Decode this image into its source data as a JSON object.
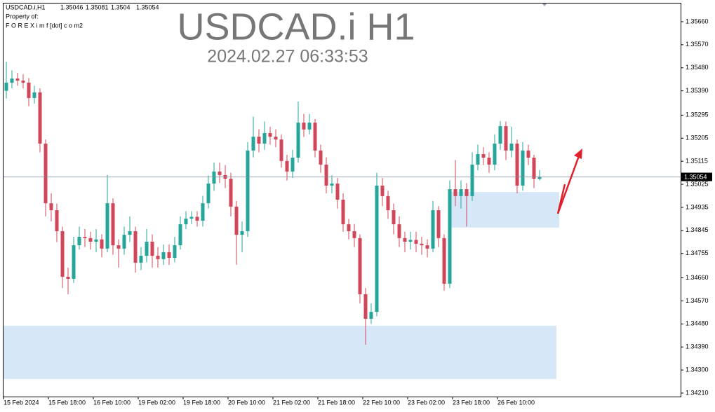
{
  "chart_data": {
    "type": "candlestick",
    "symbol_info": "USDCAD.i,H1",
    "owner_label": "Property of:",
    "owner": "F O R E X i m f [dot] c o m2",
    "title": "USDCAD.i H1",
    "subtitle": "2024.02.27 06:33:53",
    "up_color": "#26a69a",
    "down_color": "#d0475a",
    "categories": [
      "15 Feb 2024",
      null,
      null,
      null,
      null,
      null,
      null,
      null,
      "15 Feb 18:00",
      null,
      null,
      null,
      null,
      null,
      null,
      null,
      "16 Feb 10:00",
      null,
      null,
      null,
      null,
      null,
      null,
      null,
      "19 Feb 02:00",
      null,
      null,
      null,
      null,
      null,
      null,
      null,
      "19 Feb 18:00",
      null,
      null,
      null,
      null,
      null,
      null,
      null,
      "20 Feb 10:00",
      null,
      null,
      null,
      null,
      null,
      null,
      null,
      "21 Feb 02:00",
      null,
      null,
      null,
      null,
      null,
      null,
      null,
      "21 Feb 18:00",
      null,
      null,
      null,
      null,
      null,
      null,
      null,
      "22 Feb 10:00",
      null,
      null,
      null,
      null,
      null,
      null,
      null,
      "23 Feb 02:00",
      null,
      null,
      null,
      null,
      null,
      null,
      null,
      "23 Feb 18:00",
      null,
      null,
      null,
      null,
      null,
      null,
      null,
      "26 Feb 10:00",
      null,
      null,
      null,
      null,
      null,
      null,
      null
    ],
    "open": [
      1.3539,
      1.35422,
      1.35438,
      1.3543,
      1.35422,
      1.35362,
      1.35384,
      1.35184,
      1.34951,
      1.34924,
      1.34842,
      1.34664,
      1.34656,
      1.34787,
      1.3482,
      1.34815,
      1.34801,
      1.3481,
      1.34774,
      1.34951,
      1.34787,
      1.34774,
      1.34828,
      1.34842,
      1.34719,
      1.34746,
      1.34801,
      1.34746,
      1.34733,
      1.3476,
      1.34738,
      1.34787,
      1.34869,
      1.34891,
      1.34898,
      1.34883,
      1.34951,
      1.35028,
      1.35075,
      1.35061,
      1.35047,
      1.34938,
      1.34828,
      1.34842,
      1.35157,
      1.35211,
      1.35184,
      1.35225,
      1.35211,
      1.352,
      1.35116,
      1.35075,
      1.35129,
      1.35266,
      1.35239,
      1.35266,
      1.35157,
      1.35102,
      1.3502,
      1.35028,
      1.34965,
      1.34869,
      1.34842,
      1.34815,
      1.34596,
      1.345,
      1.34527,
      1.3502,
      1.34979,
      1.34924,
      1.34869,
      1.34815,
      1.34801,
      1.34808,
      1.34793,
      1.34787,
      1.34774,
      1.34924,
      1.34815,
      1.34637,
      1.35006,
      1.34979,
      1.35006,
      1.34979,
      1.35102,
      1.35143,
      1.35129,
      1.35102,
      1.35184,
      1.35252,
      1.35157,
      1.35184,
      1.3502,
      1.35157,
      1.35129,
      1.35046
    ],
    "high": [
      1.35504,
      1.3547,
      1.3546,
      1.35455,
      1.3544,
      1.3541,
      1.354,
      1.352,
      1.3499,
      1.3495,
      1.3486,
      1.347,
      1.3482,
      1.3486,
      1.3485,
      1.3484,
      1.3485,
      1.3483,
      1.35061,
      1.3497,
      1.3481,
      1.3486,
      1.349,
      1.3486,
      1.3478,
      1.3485,
      1.3483,
      1.3478,
      1.3479,
      1.3479,
      1.3482,
      1.349,
      1.3492,
      1.3492,
      1.3492,
      1.3498,
      1.3506,
      1.3511,
      1.3511,
      1.351,
      1.3507,
      1.3496,
      1.3488,
      1.3519,
      1.3529,
      1.3524,
      1.3527,
      1.3525,
      1.3524,
      1.3522,
      1.3514,
      1.3516,
      1.35348,
      1.353,
      1.353,
      1.3528,
      1.3518,
      1.3513,
      1.3506,
      1.3505,
      1.3499,
      1.3489,
      1.3487,
      1.3483,
      1.3462,
      1.3456,
      1.3507,
      1.3505,
      1.35,
      1.3495,
      1.349,
      1.3484,
      1.3484,
      1.3484,
      1.3482,
      1.3481,
      1.3496,
      1.3494,
      1.3483,
      1.3504,
      1.3512,
      1.3504,
      1.3503,
      1.3515,
      1.3518,
      1.3517,
      1.3515,
      1.3522,
      1.35272,
      1.3527,
      1.3525,
      1.352,
      1.3519,
      1.3518,
      1.3514,
      1.35081
    ],
    "low": [
      1.3536,
      1.354,
      1.3541,
      1.354,
      1.3533,
      1.3534,
      1.3515,
      1.349,
      1.3488,
      1.348,
      1.3462,
      1.34596,
      1.3464,
      1.3477,
      1.3478,
      1.3477,
      1.3476,
      1.3474,
      1.3476,
      1.3475,
      1.347,
      1.3475,
      1.348,
      1.3468,
      1.3469,
      1.3472,
      1.347,
      1.347,
      1.3471,
      1.3471,
      1.3472,
      1.3477,
      1.3485,
      1.3487,
      1.3486,
      1.3486,
      1.3493,
      1.35,
      1.3503,
      1.3501,
      1.349,
      1.34711,
      1.3476,
      1.3482,
      1.3513,
      1.3515,
      1.3516,
      1.3518,
      1.3517,
      1.3509,
      1.3504,
      1.3505,
      1.3511,
      1.3521,
      1.3522,
      1.3513,
      1.3507,
      1.3499,
      1.3499,
      1.3493,
      1.3484,
      1.3481,
      1.3478,
      1.3456,
      1.34399,
      1.3448,
      1.3451,
      1.3494,
      1.3489,
      1.3483,
      1.3478,
      1.3476,
      1.3477,
      1.3476,
      1.3475,
      1.3474,
      1.3476,
      1.3478,
      1.3461,
      1.3462,
      1.3494,
      1.3493,
      1.3486,
      1.3496,
      1.3508,
      1.351,
      1.3507,
      1.3508,
      1.3516,
      1.3512,
      1.3513,
      1.3499,
      1.35,
      1.351,
      1.3501,
      1.3504
    ],
    "close": [
      1.35422,
      1.35438,
      1.3543,
      1.35422,
      1.35362,
      1.35384,
      1.35184,
      1.34951,
      1.34924,
      1.34842,
      1.34664,
      1.34656,
      1.34787,
      1.3482,
      1.34815,
      1.34801,
      1.3481,
      1.34774,
      1.34951,
      1.34787,
      1.34774,
      1.34828,
      1.34842,
      1.34719,
      1.34746,
      1.34801,
      1.34746,
      1.34733,
      1.3476,
      1.34738,
      1.34787,
      1.34869,
      1.34891,
      1.34898,
      1.34883,
      1.34951,
      1.35028,
      1.35075,
      1.35061,
      1.35047,
      1.34938,
      1.34828,
      1.34842,
      1.35157,
      1.35211,
      1.35184,
      1.35225,
      1.35211,
      1.352,
      1.35116,
      1.35075,
      1.35129,
      1.35266,
      1.35239,
      1.35266,
      1.35157,
      1.35102,
      1.3502,
      1.35028,
      1.34965,
      1.34869,
      1.34842,
      1.34815,
      1.34596,
      1.345,
      1.34527,
      1.3502,
      1.34979,
      1.34924,
      1.34869,
      1.34815,
      1.34801,
      1.34808,
      1.34793,
      1.34787,
      1.34774,
      1.34924,
      1.34815,
      1.34637,
      1.35006,
      1.34979,
      1.35006,
      1.34979,
      1.35102,
      1.35143,
      1.35129,
      1.35102,
      1.35184,
      1.35252,
      1.35157,
      1.35184,
      1.3502,
      1.35157,
      1.35129,
      1.35047,
      1.35054
    ],
    "ylim": [
      1.34199,
      1.35731
    ],
    "yticks": [
      {
        "value": 1.3566,
        "label": "1.35660"
      },
      {
        "value": 1.3557,
        "label": "1.35570"
      },
      {
        "value": 1.3548,
        "label": "1.35480"
      },
      {
        "value": 1.3539,
        "label": "1.35390"
      },
      1.35295,
      1.35205,
      1.35115,
      1.35025,
      1.34935,
      1.34845,
      1.34755,
      {
        "value": 1.3466,
        "label": "1.34660"
      },
      {
        "value": 1.3457,
        "label": "1.34570"
      },
      {
        "value": 1.3448,
        "label": "1.34480"
      },
      {
        "value": 1.3439,
        "label": "1.34390"
      },
      {
        "value": 1.343,
        "label": "1.34300"
      },
      {
        "value": 1.3421,
        "label": "1.34210"
      }
    ],
    "zones": [
      {
        "low": 1.34856,
        "high": 1.34995,
        "color": "#d6e8f8"
      },
      {
        "low": 1.34265,
        "high": 1.34473,
        "color": "#d6e8f8"
      }
    ]
  }
}
